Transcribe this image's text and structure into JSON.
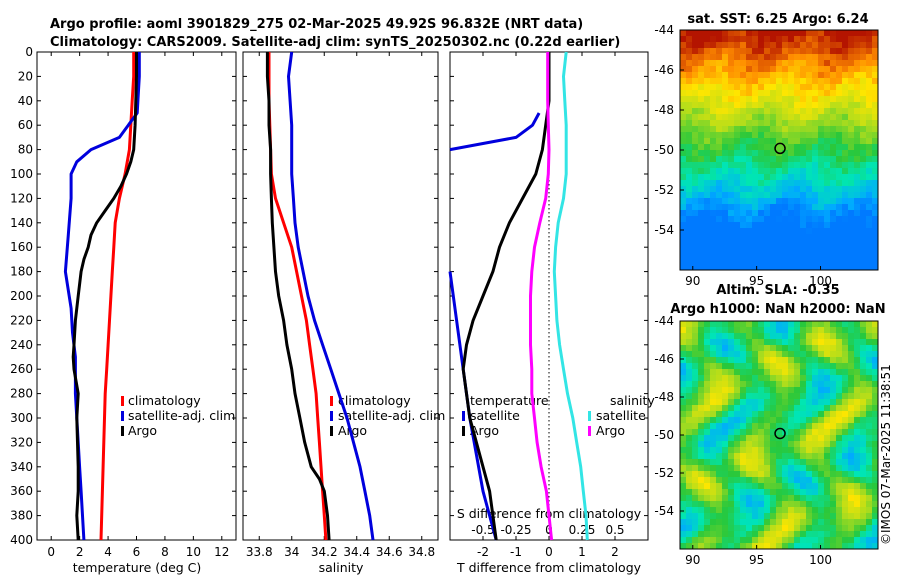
{
  "header": {
    "line1": "Argo profile: aoml 3901829_275 02-Mar-2025 49.92S 96.832E (NRT data)",
    "line2": "Climatology: CARS2009. Satellite-adj clim: synTS_20250302.nc (0.22d earlier)"
  },
  "copyright": "©IMOS 07-Mar-2025 11:38:51",
  "colors": {
    "red": "#ff0000",
    "blue": "#0000dd",
    "black": "#000000",
    "magenta": "#ff00ff",
    "cyan": "#33e5e5"
  },
  "chart_data": [
    {
      "type": "line",
      "title": "",
      "xlabel": "temperature (deg C)",
      "ylabel": "",
      "xlim": [
        -1,
        13
      ],
      "ylim": [
        400,
        0
      ],
      "xticks": [
        0,
        2,
        4,
        6,
        8,
        10,
        12
      ],
      "yticks": [
        0,
        20,
        40,
        60,
        80,
        100,
        120,
        140,
        160,
        180,
        200,
        220,
        240,
        260,
        280,
        300,
        320,
        340,
        360,
        380,
        400
      ],
      "legend": {
        "position": "lower-right",
        "entries": [
          "climatology",
          "satellite-adj. clim",
          "Argo"
        ]
      },
      "series": [
        {
          "name": "climatology",
          "color": "red",
          "x": [
            5.8,
            5.8,
            5.7,
            5.6,
            5.5,
            5.2,
            4.8,
            4.5,
            4.4,
            4.3,
            4.2,
            4.1,
            4.0,
            3.9,
            3.8,
            3.75,
            3.7,
            3.65,
            3.6,
            3.55,
            3.5
          ],
          "y": [
            0,
            20,
            40,
            60,
            80,
            100,
            120,
            140,
            160,
            180,
            200,
            220,
            240,
            260,
            280,
            300,
            320,
            340,
            360,
            380,
            400
          ]
        },
        {
          "name": "satellite-adj. clim",
          "color": "blue",
          "x": [
            6.2,
            6.2,
            6.1,
            6.05,
            4.8,
            2.8,
            1.8,
            1.4,
            1.4,
            1.2,
            1.0,
            1.4,
            1.5,
            1.7,
            1.7,
            1.8,
            1.9,
            2.0,
            2.1,
            2.2,
            2.3
          ],
          "y": [
            0,
            20,
            40,
            50,
            70,
            80,
            90,
            100,
            120,
            150,
            180,
            210,
            230,
            250,
            280,
            300,
            320,
            340,
            360,
            380,
            400
          ]
        },
        {
          "name": "Argo",
          "color": "black",
          "x": [
            6.0,
            6.0,
            5.95,
            5.9,
            5.8,
            5.6,
            5.3,
            4.9,
            4.4,
            3.8,
            3.2,
            2.8,
            2.6,
            2.3,
            2.1,
            1.9,
            1.7,
            1.6,
            1.55,
            1.6,
            1.9,
            1.8,
            1.85,
            1.9,
            1.9,
            1.8,
            1.85,
            1.9
          ],
          "y": [
            0,
            20,
            40,
            60,
            80,
            90,
            100,
            110,
            120,
            130,
            140,
            150,
            160,
            170,
            180,
            200,
            220,
            240,
            250,
            260,
            280,
            300,
            320,
            340,
            360,
            380,
            390,
            400
          ]
        }
      ]
    },
    {
      "type": "line",
      "title": "",
      "xlabel": "salinity",
      "ylabel": "",
      "xlim": [
        33.7,
        34.9
      ],
      "ylim": [
        400,
        0
      ],
      "xticks": [
        33.8,
        34.0,
        34.2,
        34.4,
        34.6,
        34.8
      ],
      "xtick_labels": [
        "33.8",
        "34",
        "34.2",
        "34.4",
        "34.6",
        "34.8"
      ],
      "legend": {
        "position": "lower-right",
        "entries": [
          "climatology",
          "satellite-adj. clim",
          "Argo"
        ]
      },
      "series": [
        {
          "name": "climatology",
          "color": "red",
          "x": [
            33.86,
            33.86,
            33.86,
            33.865,
            33.87,
            33.875,
            33.9,
            33.95,
            34.0,
            34.03,
            34.06,
            34.09,
            34.11,
            34.13,
            34.15,
            34.16,
            34.17,
            34.18,
            34.19,
            34.2,
            34.21
          ],
          "y": [
            0,
            20,
            40,
            60,
            80,
            100,
            120,
            140,
            160,
            180,
            200,
            220,
            240,
            260,
            280,
            300,
            320,
            340,
            360,
            380,
            400
          ]
        },
        {
          "name": "satellite-adj. clim",
          "color": "blue",
          "x": [
            34.0,
            33.98,
            33.99,
            34.0,
            34.0,
            34.0,
            34.01,
            34.02,
            34.04,
            34.07,
            34.1,
            34.14,
            34.19,
            34.24,
            34.29,
            34.34,
            34.38,
            34.42,
            34.45,
            34.48,
            34.5
          ],
          "y": [
            0,
            20,
            40,
            60,
            80,
            100,
            120,
            140,
            160,
            180,
            200,
            220,
            240,
            260,
            280,
            300,
            320,
            340,
            360,
            380,
            400
          ]
        },
        {
          "name": "Argo",
          "color": "black",
          "x": [
            33.85,
            33.85,
            33.86,
            33.86,
            33.87,
            33.87,
            33.875,
            33.88,
            33.89,
            33.9,
            33.92,
            33.95,
            33.97,
            34.0,
            34.02,
            34.05,
            34.08,
            34.12,
            34.17,
            34.2,
            34.22,
            34.23
          ],
          "y": [
            0,
            20,
            40,
            60,
            80,
            100,
            120,
            140,
            160,
            180,
            200,
            220,
            240,
            260,
            280,
            300,
            320,
            340,
            350,
            360,
            380,
            400
          ]
        }
      ]
    },
    {
      "type": "line",
      "title": "",
      "xlabel": "T difference from climatology",
      "secondary_xlabel": "S difference from climatology",
      "xlim": [
        -3,
        3
      ],
      "ylim": [
        400,
        0
      ],
      "xticks": [
        -2,
        -1,
        0,
        1,
        2
      ],
      "secondary_xticks": [
        -0.5,
        -0.25,
        0,
        0.25,
        0.5
      ],
      "secondary_xtick_labels": [
        "-0.5",
        "-0.25",
        "0",
        "0.25",
        "0.5"
      ],
      "legend": {
        "temperature": {
          "title": "temperature",
          "position": "lower-left",
          "entries": [
            "satellite",
            "Argo"
          ]
        },
        "salinity": {
          "title": "salinity",
          "position": "lower-right",
          "entries": [
            "satellite",
            "Argo"
          ]
        }
      },
      "series": [
        {
          "name": "temperature satellite",
          "color": "blue",
          "x": [
            -3.0,
            -2.0,
            -1.0,
            -0.5,
            -0.3,
            -3.0,
            -2.8,
            -2.6,
            -2.4,
            -2.2,
            -2.0,
            -1.8,
            -1.6
          ],
          "y": [
            80,
            75,
            70,
            60,
            50,
            180,
            220,
            260,
            300,
            330,
            360,
            380,
            400
          ]
        },
        {
          "name": "temperature Argo",
          "color": "black",
          "x": [
            0.0,
            0.0,
            0.0,
            -0.1,
            -0.2,
            -0.4,
            -0.8,
            -1.2,
            -1.5,
            -1.7,
            -2.0,
            -2.3,
            -2.5,
            -2.6,
            -2.5,
            -2.4,
            -2.2,
            -2.0,
            -1.8,
            -1.7,
            -1.6
          ],
          "y": [
            0,
            20,
            40,
            60,
            80,
            100,
            120,
            140,
            160,
            180,
            200,
            220,
            240,
            260,
            280,
            300,
            320,
            340,
            360,
            380,
            400
          ]
        },
        {
          "name": "salinity satellite",
          "color": "cyan",
          "x": [
            0.13,
            0.11,
            0.12,
            0.13,
            0.13,
            0.13,
            0.11,
            0.07,
            0.05,
            0.04,
            0.05,
            0.06,
            0.08,
            0.11,
            0.14,
            0.18,
            0.21,
            0.24,
            0.26,
            0.28,
            0.29
          ],
          "y": [
            0,
            20,
            40,
            60,
            80,
            100,
            120,
            140,
            160,
            180,
            200,
            220,
            240,
            260,
            280,
            300,
            320,
            340,
            360,
            380,
            400
          ]
        },
        {
          "name": "salinity Argo",
          "color": "magenta",
          "x": [
            -0.01,
            -0.01,
            -0.01,
            -0.005,
            0.0,
            -0.005,
            -0.025,
            -0.07,
            -0.11,
            -0.13,
            -0.14,
            -0.14,
            -0.14,
            -0.13,
            -0.13,
            -0.11,
            -0.09,
            -0.06,
            -0.02,
            0.0,
            0.02
          ],
          "y": [
            0,
            20,
            40,
            60,
            80,
            100,
            120,
            140,
            160,
            180,
            200,
            220,
            240,
            260,
            280,
            300,
            320,
            340,
            360,
            380,
            400
          ]
        }
      ]
    },
    {
      "type": "heatmap",
      "title": "sat. SST: 6.25 Argo: 6.24",
      "xlim": [
        89,
        104.5
      ],
      "ylim": [
        -56,
        -44
      ],
      "xticks": [
        90,
        95,
        100
      ],
      "yticks": [
        -44,
        -46,
        -48,
        -50,
        -52,
        -54
      ],
      "marker": {
        "lon": 96.832,
        "lat": -49.92
      },
      "value_range": [
        2,
        10
      ]
    },
    {
      "type": "heatmap",
      "title": "Altim. SLA: -0.35",
      "subtitle": "Argo h1000: NaN h2000: NaN",
      "xlim": [
        89,
        104.5
      ],
      "ylim": [
        -56,
        -44
      ],
      "xticks": [
        90,
        95,
        100
      ],
      "yticks": [
        -44,
        -46,
        -48,
        -50,
        -52,
        -54
      ],
      "marker": {
        "lon": 96.832,
        "lat": -49.92
      },
      "value_range": [
        -1,
        1
      ]
    }
  ]
}
